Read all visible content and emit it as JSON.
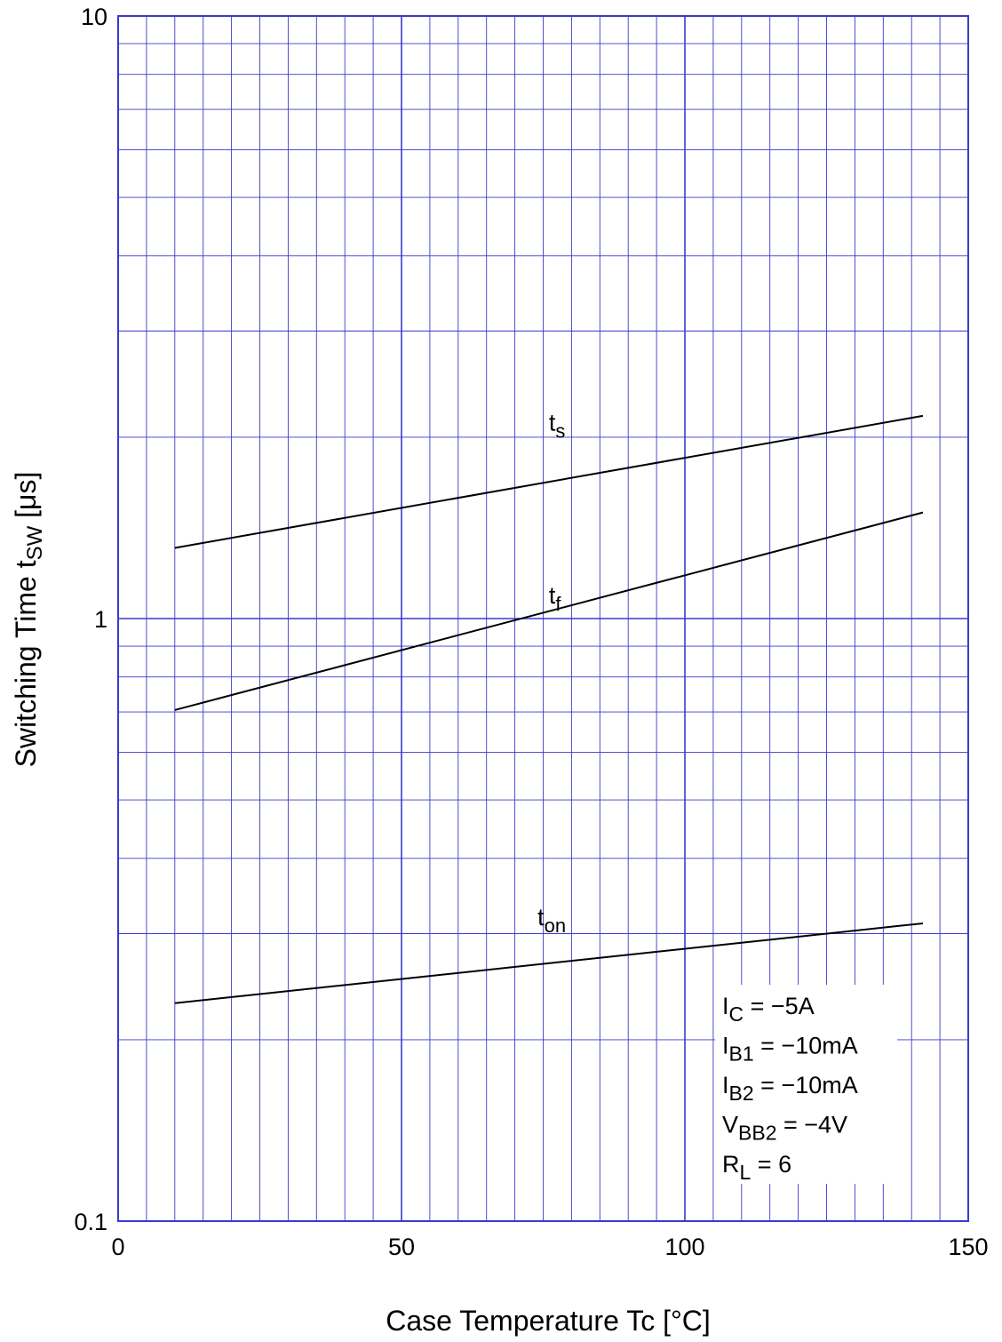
{
  "chart_data": {
    "type": "line",
    "x_scale": "linear",
    "y_scale": "log",
    "xlim": [
      0,
      150
    ],
    "ylim": [
      0.1,
      10
    ],
    "grid": true,
    "grid_color": "#3a3acc",
    "line_color": "#000000",
    "xticks": [
      {
        "value": 0,
        "label": "0"
      },
      {
        "value": 50,
        "label": "50"
      },
      {
        "value": 100,
        "label": "100"
      },
      {
        "value": 150,
        "label": "150"
      }
    ],
    "yticks": [
      {
        "value": 0.1,
        "label": "0.1"
      },
      {
        "value": 1,
        "label": "1"
      },
      {
        "value": 10,
        "label": "10"
      }
    ],
    "xlabel": "Case Temperature  Tc  [°C]",
    "ylabel": {
      "main": "Switching Time  t",
      "sub": "SW",
      "unit": "  [μs]"
    },
    "series": [
      {
        "name": "ts",
        "label_main": "t",
        "label_sub": "s",
        "label_at": [
          76,
          2.05
        ],
        "points": [
          [
            10,
            1.31
          ],
          [
            142,
            2.17
          ]
        ]
      },
      {
        "name": "tf",
        "label_main": "t",
        "label_sub": "f",
        "label_at": [
          76,
          1.06
        ],
        "points": [
          [
            10,
            0.705
          ],
          [
            142,
            1.5
          ]
        ]
      },
      {
        "name": "ton",
        "label_main": "t",
        "label_sub": "on",
        "label_at": [
          74,
          0.31
        ],
        "points": [
          [
            10,
            0.23
          ],
          [
            142,
            0.312
          ]
        ]
      }
    ],
    "conditions": [
      {
        "main": "I",
        "sub": "C",
        "rest": " = −5A"
      },
      {
        "main": "I",
        "sub": "B1",
        "rest": " = −10mA"
      },
      {
        "main": "I",
        "sub": "B2",
        "rest": " = −10mA"
      },
      {
        "main": "V",
        "sub": "BB2",
        "rest": " = −4V"
      },
      {
        "main": "R",
        "sub": "L",
        "rest": " = 6"
      }
    ]
  }
}
